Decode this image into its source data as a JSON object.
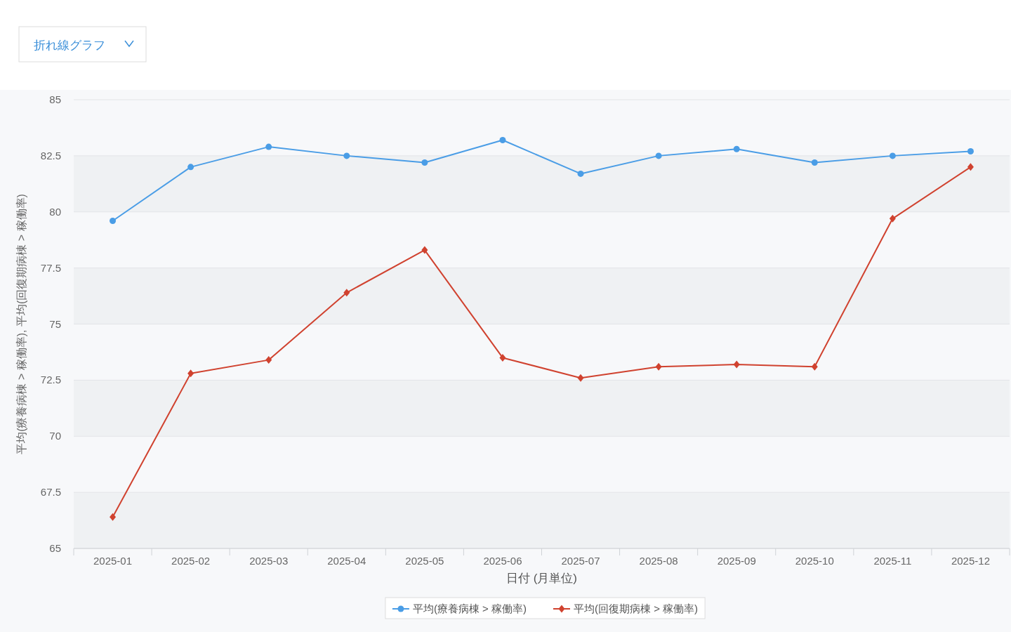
{
  "chart_data": {
    "type": "line",
    "categories": [
      "2025-01",
      "2025-02",
      "2025-03",
      "2025-04",
      "2025-05",
      "2025-06",
      "2025-07",
      "2025-08",
      "2025-09",
      "2025-10",
      "2025-11",
      "2025-12"
    ],
    "xlabel": "日付 (月単位)",
    "ylabel": "平均(療養病棟 > 稼働率), 平均(回復期病棟 > 稼働率)",
    "ylim": [
      65,
      85
    ],
    "yticks": [
      65,
      67.5,
      70,
      72.5,
      75,
      77.5,
      80,
      82.5,
      85
    ],
    "grid": "y",
    "legend": "bottom",
    "annotations": [
      "折れ線グラフ"
    ],
    "series": [
      {
        "name": "平均(療養病棟 > 稼働率)",
        "color": "#4a9de6",
        "marker": "circle",
        "values": [
          79.6,
          82.0,
          82.9,
          82.5,
          82.2,
          83.2,
          81.7,
          82.5,
          82.8,
          82.2,
          82.5,
          82.7
        ]
      },
      {
        "name": "平均(回復期病棟 > 稼働率)",
        "color": "#d0422f",
        "marker": "diamond",
        "values": [
          66.4,
          72.8,
          73.4,
          76.4,
          78.3,
          73.5,
          72.6,
          73.1,
          73.2,
          73.1,
          79.7,
          82.0
        ]
      }
    ]
  }
}
